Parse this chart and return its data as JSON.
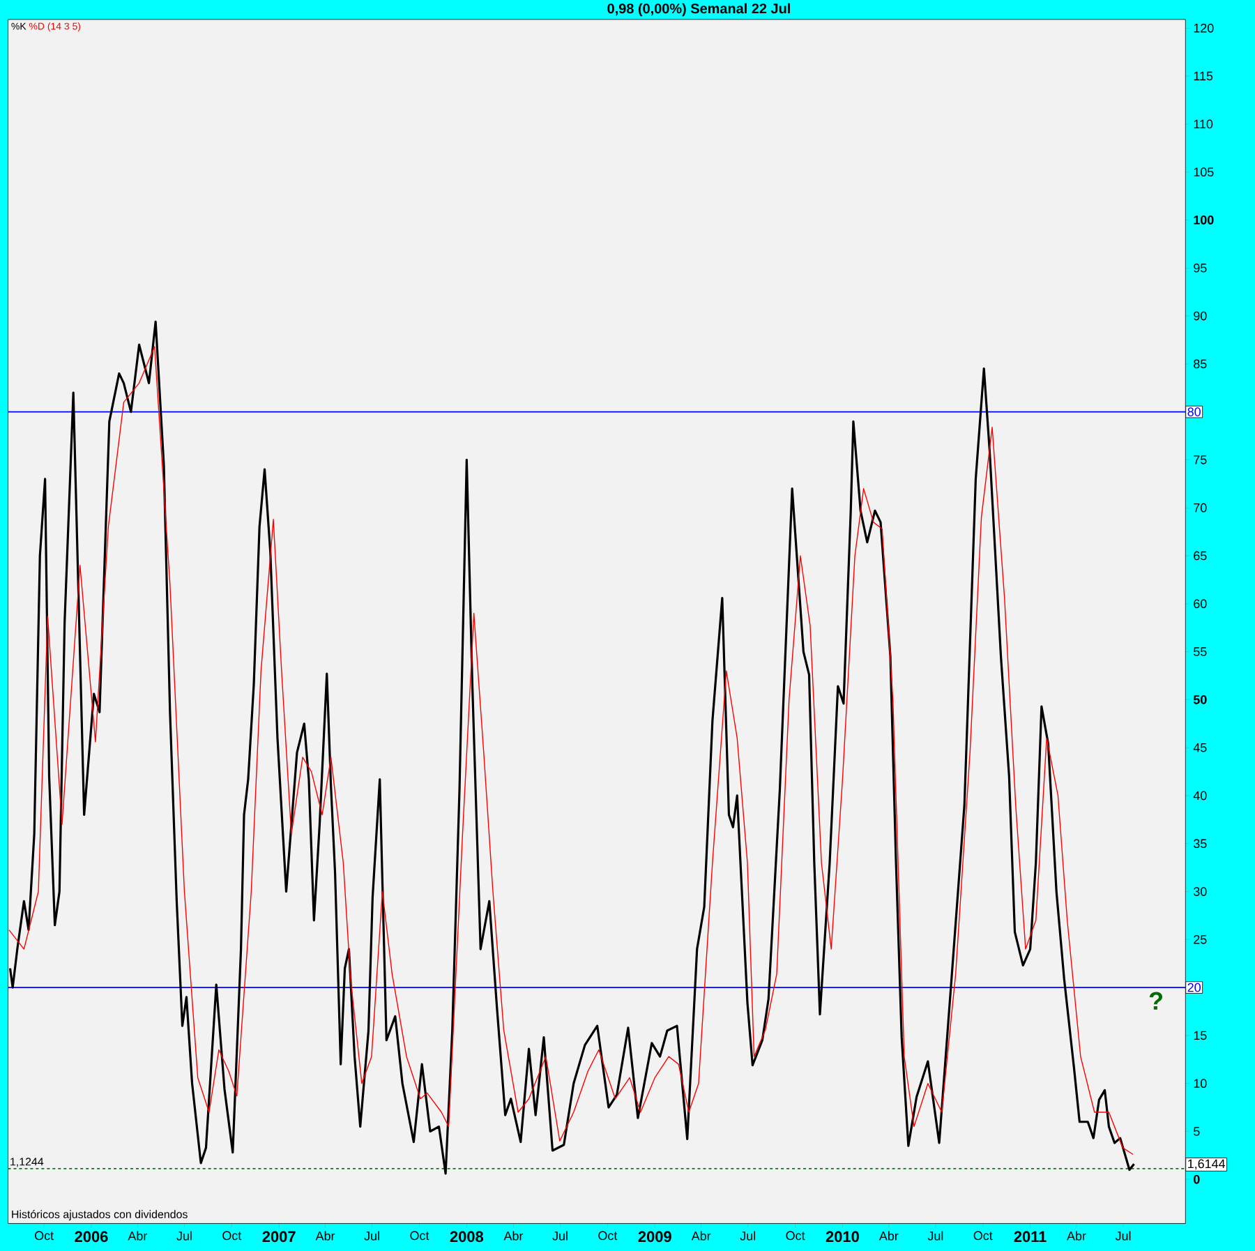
{
  "chart_data": {
    "type": "line",
    "title": "0,98 (0,00%)   Semanal  22 Jul",
    "annotations": [
      "Históricos ajustados con dividendos",
      "?",
      "1,6144"
    ],
    "legend": "top left",
    "series": [
      {
        "name": "%K",
        "color": "#000000",
        "x": [
          "2005-07-27",
          "2005-08-01",
          "2005-08-10",
          "2005-08-23",
          "2005-09-01",
          "2005-09-12",
          "2005-09-23",
          "2005-10-03",
          "2005-10-11",
          "2005-10-22",
          "2005-10-31",
          "2005-11-10",
          "2005-11-27",
          "2005-12-18",
          "2006-01-06",
          "2006-01-17",
          "2006-02-05",
          "2006-02-24",
          "2006-03-05",
          "2006-03-19",
          "2006-04-04",
          "2006-04-23",
          "2006-05-06",
          "2006-05-22",
          "2006-06-03",
          "2006-06-16",
          "2006-06-27",
          "2006-07-05",
          "2006-07-16",
          "2006-08-02",
          "2006-08-12",
          "2006-09-01",
          "2006-09-17",
          "2006-10-03",
          "2006-10-19",
          "2006-10-25",
          "2006-11-02",
          "2006-11-13",
          "2006-11-24",
          "2006-12-04",
          "2006-12-15",
          "2006-12-29",
          "2007-01-15",
          "2007-02-05",
          "2007-02-19",
          "2007-02-28",
          "2007-03-10",
          "2007-03-21",
          "2007-04-04",
          "2007-04-12",
          "2007-04-20",
          "2007-05-01",
          "2007-05-09",
          "2007-05-17",
          "2007-05-28",
          "2007-06-08",
          "2007-06-24",
          "2007-07-02",
          "2007-07-16",
          "2007-07-29",
          "2007-08-15",
          "2007-08-29",
          "2007-09-20",
          "2007-10-06",
          "2007-10-22",
          "2007-11-08",
          "2007-11-21",
          "2007-12-04",
          "2007-12-18",
          "2008-01-01",
          "2008-01-12",
          "2008-01-28",
          "2008-02-14",
          "2008-02-29",
          "2008-03-16",
          "2008-03-27",
          "2008-04-15",
          "2008-05-01",
          "2008-05-14",
          "2008-05-30",
          "2008-06-16",
          "2008-07-08",
          "2008-07-27",
          "2008-08-18",
          "2008-09-11",
          "2008-10-03",
          "2008-10-19",
          "2008-11-10",
          "2008-11-29",
          "2008-12-26",
          "2009-01-11",
          "2009-01-25",
          "2009-02-13",
          "2009-03-05",
          "2009-03-24",
          "2009-04-07",
          "2009-04-23",
          "2009-05-12",
          "2009-05-25",
          "2009-06-02",
          "2009-06-10",
          "2009-06-30",
          "2009-07-10",
          "2009-07-29",
          "2009-08-10",
          "2009-09-01",
          "2009-09-25",
          "2009-10-17",
          "2009-10-28",
          "2009-11-07",
          "2009-11-18",
          "2009-12-07",
          "2009-12-23",
          "2010-01-03",
          "2010-01-17",
          "2010-01-22",
          "2010-02-05",
          "2010-02-18",
          "2010-03-05",
          "2010-03-16",
          "2010-04-04",
          "2010-04-15",
          "2010-04-26",
          "2010-05-09",
          "2010-05-25",
          "2010-06-16",
          "2010-07-08",
          "2010-08-01",
          "2010-08-26",
          "2010-09-17",
          "2010-10-03",
          "2010-10-14",
          "2010-11-05",
          "2010-11-21",
          "2010-12-02",
          "2010-12-18",
          "2011-01-01",
          "2011-01-12",
          "2011-01-23",
          "2011-02-05",
          "2011-02-21",
          "2011-03-08",
          "2011-03-27",
          "2011-04-07",
          "2011-04-23",
          "2011-05-04",
          "2011-05-15",
          "2011-05-26",
          "2011-06-03",
          "2011-06-14",
          "2011-06-25",
          "2011-07-13",
          "2011-07-22"
        ],
        "values": [
          22,
          20,
          24,
          29,
          26,
          36,
          65,
          73,
          42,
          26.5,
          30,
          58,
          82,
          38,
          50.6,
          48.7,
          79,
          84,
          83,
          80,
          87,
          83,
          89.4,
          74.5,
          48.7,
          29,
          16,
          19,
          10,
          1.7,
          3.3,
          20.3,
          9.4,
          2.8,
          24,
          38,
          41.7,
          51.6,
          68,
          74,
          65.5,
          46,
          30,
          44.5,
          47.5,
          41.7,
          27,
          37,
          52.7,
          41,
          32,
          12,
          22,
          24,
          12.8,
          5.5,
          15.5,
          29.4,
          41.7,
          14.5,
          17,
          10,
          3.9,
          12,
          5,
          5.5,
          0.6,
          15.5,
          40.6,
          75,
          51.6,
          24,
          29,
          17.8,
          6.7,
          8.4,
          3.9,
          13.6,
          6.7,
          14.8,
          3,
          3.6,
          10,
          14,
          16,
          7.5,
          8.8,
          15.8,
          6.4,
          14.2,
          12.8,
          15.5,
          16,
          4.2,
          24,
          28.4,
          47.8,
          60.6,
          38,
          36.7,
          40,
          18.4,
          11.9,
          14.5,
          18.8,
          40.6,
          72,
          55,
          52.6,
          33,
          17.2,
          33,
          51.4,
          49.6,
          69.7,
          79,
          69.7,
          66.4,
          69.7,
          68.5,
          54.5,
          33,
          14.8,
          3.5,
          8.6,
          12.3,
          3.8,
          20.9,
          39,
          73,
          84.5,
          76,
          54.5,
          42,
          25.8,
          22.3,
          24,
          33,
          49.3,
          45.4,
          30,
          20.9,
          11.7,
          6,
          6,
          4.3,
          8.3,
          9.3,
          5.5,
          3.8,
          4.3,
          1.0,
          1.6
        ]
      },
      {
        "name": "%D (14 3 5)",
        "color": "#ff0000",
        "x": [
          "2005-07-25",
          "2005-08-23",
          "2005-09-20",
          "2005-10-08",
          "2005-11-05",
          "2005-12-10",
          "2006-01-09",
          "2006-02-03",
          "2006-03-05",
          "2006-04-04",
          "2006-05-04",
          "2006-06-03",
          "2006-07-01",
          "2006-07-27",
          "2006-08-18",
          "2006-09-06",
          "2006-09-25",
          "2006-10-11",
          "2006-11-08",
          "2006-11-27",
          "2006-12-21",
          "2007-01-06",
          "2007-01-25",
          "2007-02-16",
          "2007-03-05",
          "2007-03-26",
          "2007-04-12",
          "2007-05-06",
          "2007-05-20",
          "2007-06-11",
          "2007-06-30",
          "2007-07-21",
          "2007-08-09",
          "2007-09-06",
          "2007-10-03",
          "2007-10-16",
          "2007-11-13",
          "2007-11-27",
          "2007-12-24",
          "2008-01-15",
          "2008-02-03",
          "2008-02-21",
          "2008-03-13",
          "2008-04-10",
          "2008-05-01",
          "2008-06-03",
          "2008-06-30",
          "2008-07-27",
          "2008-08-24",
          "2008-09-14",
          "2008-10-16",
          "2008-11-13",
          "2008-12-04",
          "2009-01-01",
          "2009-01-28",
          "2009-02-16",
          "2009-03-08",
          "2009-03-27",
          "2009-04-23",
          "2009-05-20",
          "2009-06-10",
          "2009-06-30",
          "2009-07-13",
          "2009-08-04",
          "2009-08-26",
          "2009-09-19",
          "2009-10-11",
          "2009-10-30",
          "2009-11-21",
          "2009-12-10",
          "2010-01-01",
          "2010-01-25",
          "2010-02-11",
          "2010-03-02",
          "2010-03-19",
          "2010-04-09",
          "2010-05-01",
          "2010-05-20",
          "2010-06-16",
          "2010-07-13",
          "2010-08-09",
          "2010-09-06",
          "2010-09-28",
          "2010-10-19",
          "2010-11-12",
          "2010-12-04",
          "2010-12-23",
          "2011-01-12",
          "2011-02-02",
          "2011-02-24",
          "2011-03-14",
          "2011-04-09",
          "2011-05-06",
          "2011-06-03",
          "2011-06-30",
          "2011-07-20"
        ],
        "values": [
          26,
          24,
          30,
          58.7,
          37,
          64,
          45.6,
          68,
          81,
          83,
          86.8,
          62,
          30,
          10.6,
          7,
          13.5,
          11.3,
          8.7,
          30,
          53,
          68.8,
          53,
          36,
          44,
          42.5,
          38,
          44,
          33,
          21,
          10,
          12.8,
          30,
          21.4,
          12.8,
          8.4,
          9,
          7,
          5.5,
          36,
          59,
          44.6,
          30,
          15.6,
          7,
          8.4,
          12.8,
          4,
          7,
          11.3,
          13.5,
          8.4,
          10.6,
          7,
          10.6,
          12.8,
          12,
          7,
          10,
          33,
          53,
          46,
          33,
          12.8,
          15.6,
          21.4,
          50,
          65,
          57.7,
          33,
          24,
          41.7,
          65,
          72,
          68.5,
          67.8,
          50,
          12.8,
          5.5,
          10,
          7,
          21.4,
          44.6,
          69,
          78.4,
          60.6,
          38.8,
          24,
          27,
          46,
          40,
          27,
          12.8,
          7,
          7,
          3.3,
          2.6
        ]
      }
    ],
    "xlim": [
      "2005-07-23",
      "2011-10-30"
    ],
    "xticks": [
      {
        "value": "2005-10-01",
        "label": "Oct"
      },
      {
        "value": "2006-01-01",
        "label": "2006"
      },
      {
        "value": "2006-04-01",
        "label": "Abr"
      },
      {
        "value": "2006-07-01",
        "label": "Jul"
      },
      {
        "value": "2006-10-01",
        "label": "Oct"
      },
      {
        "value": "2007-01-01",
        "label": "2007"
      },
      {
        "value": "2007-04-01",
        "label": "Abr"
      },
      {
        "value": "2007-07-01",
        "label": "Jul"
      },
      {
        "value": "2007-10-01",
        "label": "Oct"
      },
      {
        "value": "2008-01-01",
        "label": "2008"
      },
      {
        "value": "2008-04-01",
        "label": "Abr"
      },
      {
        "value": "2008-07-01",
        "label": "Jul"
      },
      {
        "value": "2008-10-01",
        "label": "Oct"
      },
      {
        "value": "2009-01-01",
        "label": "2009"
      },
      {
        "value": "2009-04-01",
        "label": "Abr"
      },
      {
        "value": "2009-07-01",
        "label": "Jul"
      },
      {
        "value": "2009-10-01",
        "label": "Oct"
      },
      {
        "value": "2010-01-01",
        "label": "2010"
      },
      {
        "value": "2010-04-01",
        "label": "Abr"
      },
      {
        "value": "2010-07-01",
        "label": "Jul"
      },
      {
        "value": "2010-10-01",
        "label": "Oct"
      },
      {
        "value": "2011-01-01",
        "label": "2011"
      },
      {
        "value": "2011-04-01",
        "label": "Abr"
      },
      {
        "value": "2011-07-01",
        "label": "Jul"
      }
    ],
    "ylim": [
      -4.6,
      120.9
    ],
    "yticks": [
      0,
      5,
      10,
      15,
      {
        "value": 20,
        "label": null
      },
      25,
      30,
      35,
      40,
      45,
      50,
      55,
      60,
      65,
      70,
      75,
      {
        "value": 80,
        "label": null
      },
      85,
      90,
      95,
      100,
      105,
      110,
      115,
      120
    ],
    "ref_lines": [
      {
        "axis": "y",
        "value": 80,
        "label": "80",
        "color": "#0000ff",
        "line_style": "solid"
      },
      {
        "axis": "y",
        "value": 20,
        "label": "20",
        "color": "#0000ff",
        "line_style": "solid"
      },
      {
        "axis": "y",
        "value": 1.1244,
        "label": "1,1244",
        "color": "#008000",
        "line_style": "dotted"
      }
    ]
  }
}
